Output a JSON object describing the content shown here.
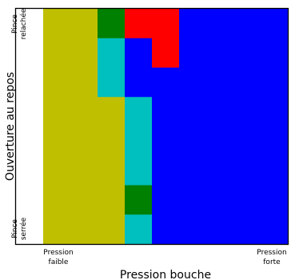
{
  "chart_data": {
    "type": "heatmap",
    "title": "",
    "xlabel": "Pression bouche",
    "ylabel": "Ouverture au repos",
    "x_tick_labels": [
      {
        "lines": [
          "Pression",
          "faible"
        ]
      },
      {
        "lines": [
          "Pression",
          "forte"
        ]
      }
    ],
    "y_tick_labels": [
      {
        "lines": [
          "Pince",
          "relachée"
        ]
      },
      {
        "lines": [
          "Pince",
          "serrée"
        ]
      }
    ],
    "grid": false,
    "legend": "none",
    "columns": 9,
    "rows": 8,
    "row_order": "top-to-bottom (relachée to serrée)",
    "palette": {
      "Y": "#bfbf00",
      "G": "#008000",
      "C": "#00bfbf",
      "R": "#ff0000",
      "B": "#0000ff"
    },
    "grid_values": [
      [
        "Y",
        "Y",
        "G",
        "R",
        "R",
        "B",
        "B",
        "B",
        "B"
      ],
      [
        "Y",
        "Y",
        "C",
        "B",
        "R",
        "B",
        "B",
        "B",
        "B"
      ],
      [
        "Y",
        "Y",
        "C",
        "B",
        "B",
        "B",
        "B",
        "B",
        "B"
      ],
      [
        "Y",
        "Y",
        "Y",
        "C",
        "B",
        "B",
        "B",
        "B",
        "B"
      ],
      [
        "Y",
        "Y",
        "Y",
        "C",
        "B",
        "B",
        "B",
        "B",
        "B"
      ],
      [
        "Y",
        "Y",
        "Y",
        "C",
        "B",
        "B",
        "B",
        "B",
        "B"
      ],
      [
        "Y",
        "Y",
        "Y",
        "G",
        "B",
        "B",
        "B",
        "B",
        "B"
      ],
      [
        "Y",
        "Y",
        "Y",
        "C",
        "B",
        "B",
        "B",
        "B",
        "B"
      ]
    ]
  }
}
